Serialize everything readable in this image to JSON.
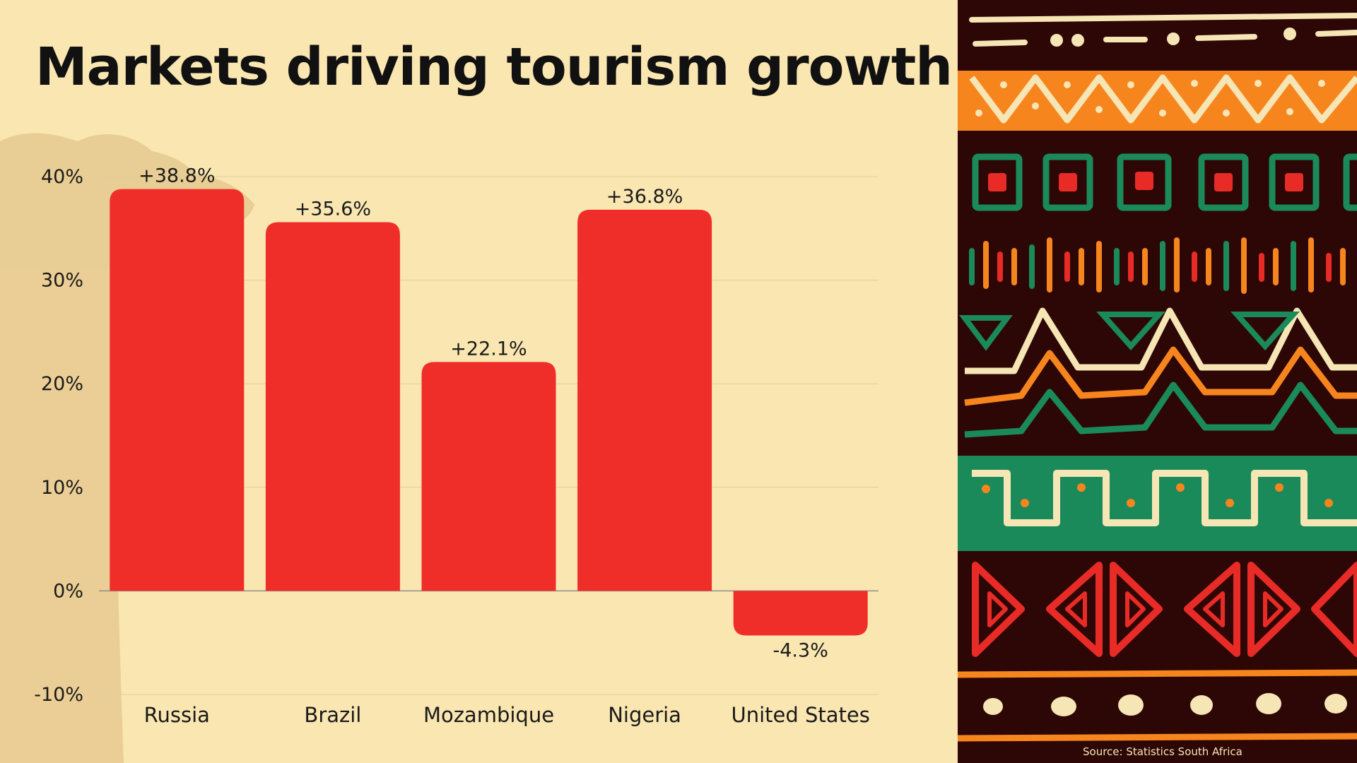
{
  "title": "Markets driving tourism growth",
  "source": "Source: Statistics South Africa",
  "colors": {
    "background": "#FAE6B1",
    "bar": "#EF2E2A",
    "text": "#111111",
    "pattern_dark": "#2D0705",
    "pattern_orange": "#F7851E",
    "pattern_green": "#1A8A5A",
    "pattern_cream": "#F6E5B5",
    "pattern_red": "#E82B26"
  },
  "chart_data": {
    "type": "bar",
    "categories": [
      "Russia",
      "Brazil",
      "Mozambique",
      "Nigeria",
      "United States"
    ],
    "values": [
      38.8,
      35.6,
      22.1,
      36.8,
      -4.3
    ],
    "data_labels": [
      "+38.8%",
      "+35.6%",
      "+22.1%",
      "+36.8%",
      "-4.3%"
    ],
    "yticks": [
      "40%",
      "30%",
      "20%",
      "10%",
      "0%",
      "-10%"
    ],
    "ytick_values": [
      40,
      30,
      20,
      10,
      0,
      -10
    ],
    "ylim": [
      -10,
      40
    ],
    "grid": true,
    "legend": "none"
  }
}
